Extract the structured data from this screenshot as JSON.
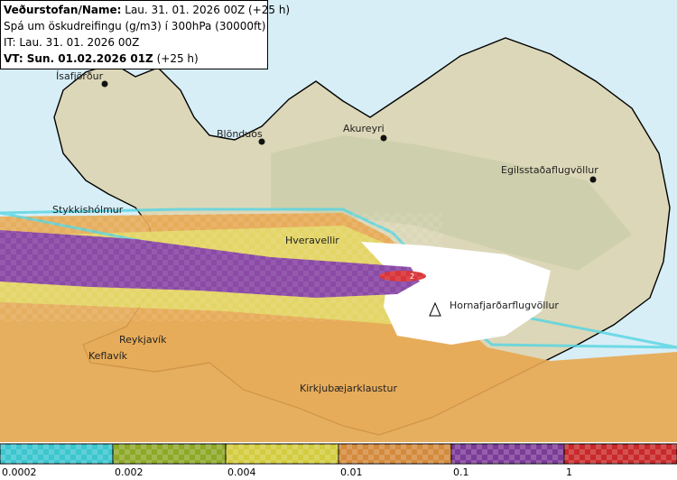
{
  "header": {
    "lines": [
      {
        "bold": "Veðurstofan/Name:",
        "text": "Lau. 31. 01. 2026 00Z (+25 h)"
      },
      {
        "bold": null,
        "text": "Spá um öskudreifingu (g/m3) í 300hPa (30000ft)"
      },
      {
        "bold": null,
        "text": "IT: Lau. 31. 01. 2026 00Z"
      },
      {
        "bold": "VT: Sun. 01.02.2026 01Z",
        "text": "(+25 h)"
      }
    ]
  },
  "places": [
    {
      "label": "Ísafjörður"
    },
    {
      "label": "Blönduós"
    },
    {
      "label": "Akureyri"
    },
    {
      "label": "Egilsstaðaflugvöllur"
    },
    {
      "label": "Stykkishólmur"
    },
    {
      "label": "Hveravellir"
    },
    {
      "label": "Hornafjarðarflugvöllur"
    },
    {
      "label": "Reykjavík"
    },
    {
      "label": "Keflavík"
    },
    {
      "label": "Kirkjubæjarklaustur"
    }
  ],
  "volcano_marker": "2",
  "legend": {
    "bins": [
      {
        "label": "0.0002",
        "color": "#3cc6cf"
      },
      {
        "label": "0.002",
        "color": "#8ea828"
      },
      {
        "label": "0.004",
        "color": "#d3cc3e"
      },
      {
        "label": "0.01",
        "color": "#d48a3c"
      },
      {
        "label": "0.1",
        "color": "#7c3b98"
      },
      {
        "label": "1",
        "color": "#c9292b"
      }
    ]
  }
}
